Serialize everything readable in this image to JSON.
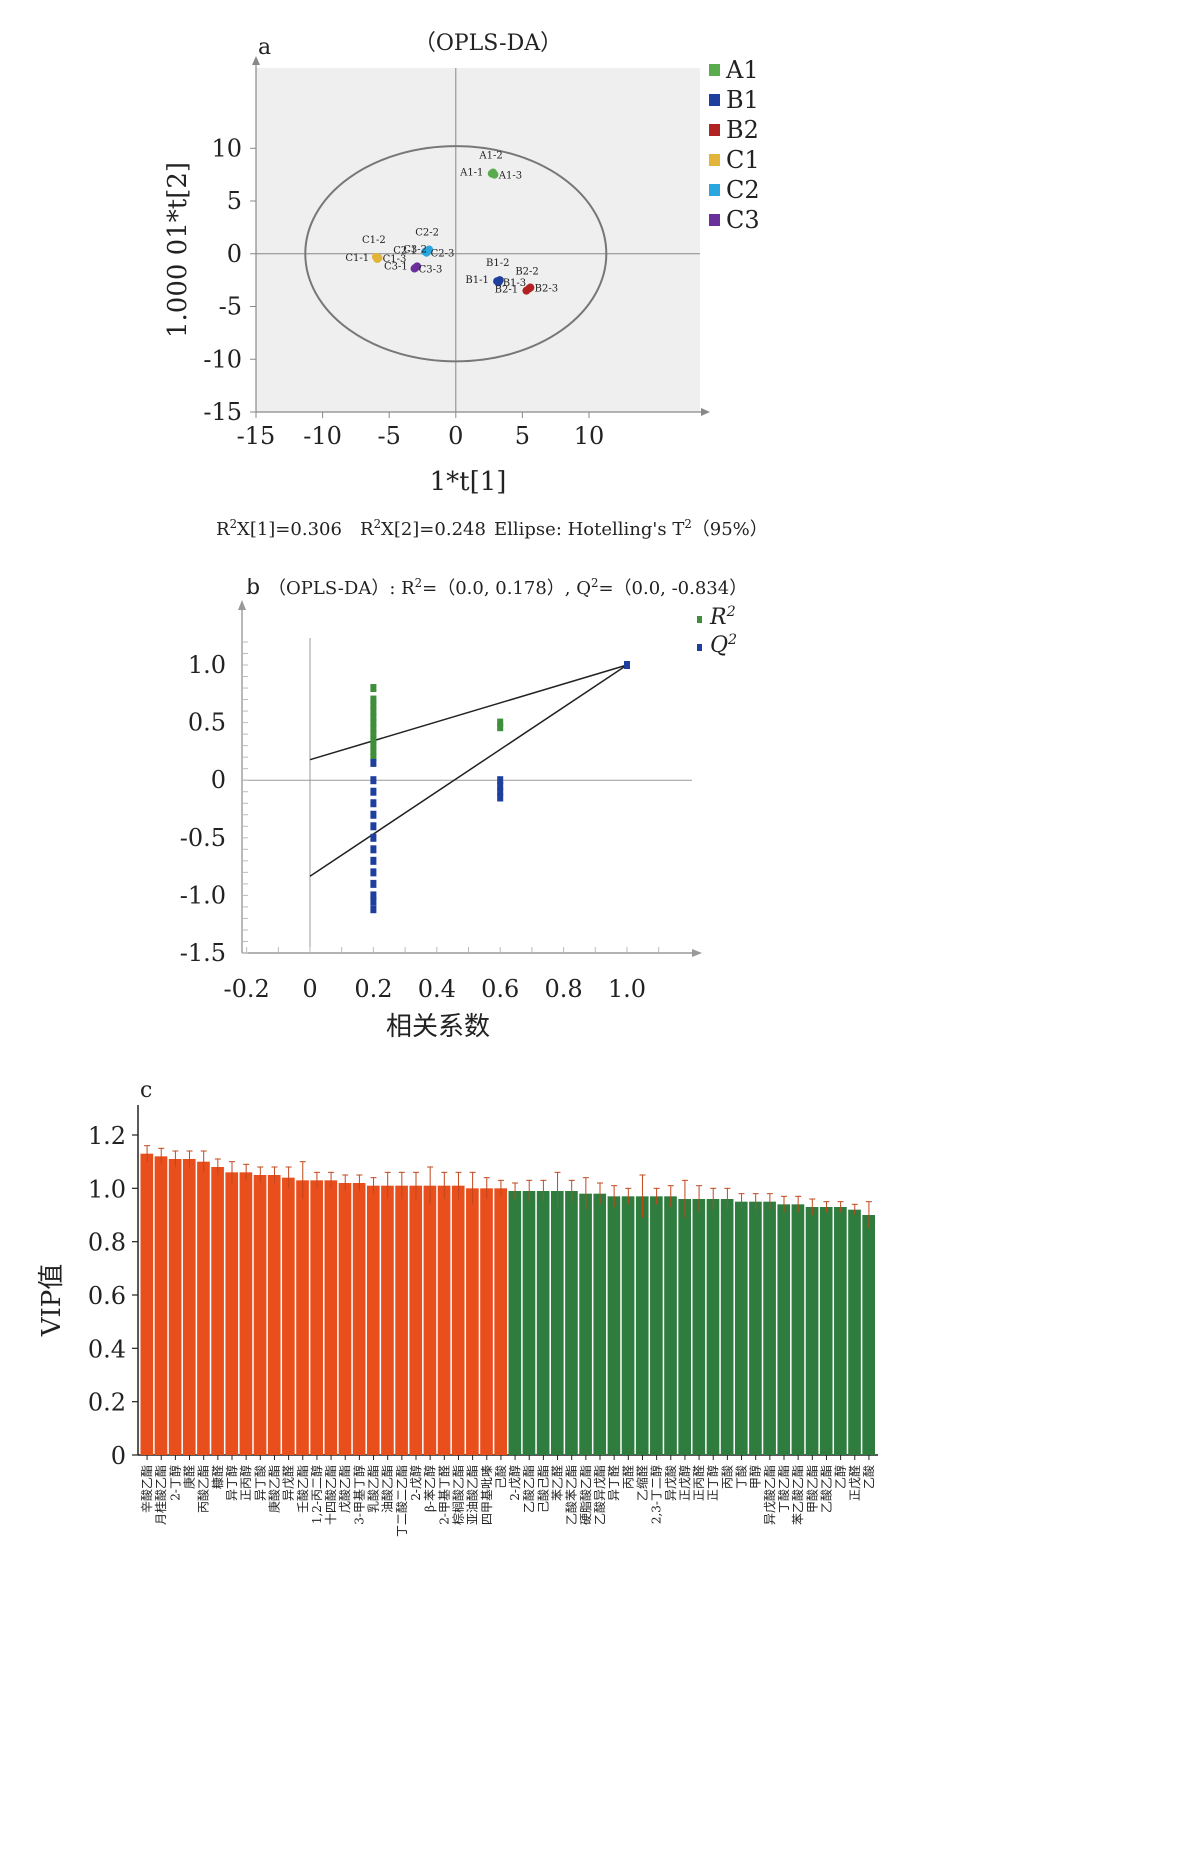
{
  "colors": {
    "A1": "#5aaa4e",
    "B1": "#1f3f9e",
    "B2": "#b22222",
    "C1": "#e3b43a",
    "C2": "#2aa6de",
    "C3": "#6a2f9a",
    "r2": "#3e8e3a",
    "q2": "#1f3f9e",
    "vip_high": "#e94f1d",
    "vip_low": "#2f7d3e",
    "plot_bg": "#efefef"
  },
  "chart_data": [
    {
      "panel": "a",
      "type": "scatter",
      "title": "（OPLS-DA）",
      "xlabel": "1*t[1]",
      "ylabel": "1.000 01*t[2]",
      "xlim": [
        -15,
        15
      ],
      "ylim": [
        -15,
        15
      ],
      "xticks": [
        "-15",
        "-10",
        "-5",
        "0",
        "5",
        "10"
      ],
      "yticks": [
        "10",
        "5",
        "0",
        "-5",
        "-10",
        "-15"
      ],
      "legend_position": "right",
      "series": [
        {
          "name": "A1",
          "points": [
            {
              "x": 2.7,
              "y": 7.6,
              "label": "A1-1"
            },
            {
              "x": 2.8,
              "y": 7.7,
              "label": "A1-2"
            },
            {
              "x": 2.9,
              "y": 7.5,
              "label": "A1-3"
            }
          ]
        },
        {
          "name": "B1",
          "points": [
            {
              "x": 3.1,
              "y": -2.6,
              "label": "B1-1"
            },
            {
              "x": 3.3,
              "y": -2.5,
              "label": "B1-2"
            },
            {
              "x": 3.2,
              "y": -2.7,
              "label": "B1-3"
            }
          ]
        },
        {
          "name": "B2",
          "points": [
            {
              "x": 5.3,
              "y": -3.5,
              "label": "B2-1"
            },
            {
              "x": 5.5,
              "y": -3.3,
              "label": "B2-2"
            },
            {
              "x": 5.6,
              "y": -3.2,
              "label": "B2-3"
            }
          ]
        },
        {
          "name": "C1",
          "points": [
            {
              "x": -5.9,
              "y": -0.5,
              "label": "C1-1"
            },
            {
              "x": -6.0,
              "y": -0.3,
              "label": "C1-2"
            },
            {
              "x": -5.8,
              "y": -0.4,
              "label": "C1-3"
            }
          ]
        },
        {
          "name": "C2",
          "points": [
            {
              "x": -2.3,
              "y": 0.2,
              "label": "C2-1"
            },
            {
              "x": -2.0,
              "y": 0.4,
              "label": "C2-2"
            },
            {
              "x": -2.2,
              "y": 0.1,
              "label": "C2-3"
            }
          ]
        },
        {
          "name": "C3",
          "points": [
            {
              "x": -3.0,
              "y": -1.3,
              "label": "C3-1"
            },
            {
              "x": -2.9,
              "y": -1.2,
              "label": "C3-2"
            },
            {
              "x": -3.1,
              "y": -1.4,
              "label": "C3-3"
            }
          ]
        }
      ],
      "ellipse": {
        "cx": 0,
        "cy": 0,
        "rx": 11.3,
        "ry": 10.2
      },
      "footer": {
        "r2x1": "R²X[1]=0.306",
        "r2x2": "R²X[2]=0.248",
        "ellipse_note": "Ellipse: Hotelling's T²（95%）"
      }
    },
    {
      "panel": "b",
      "type": "scatter",
      "title": "（OPLS-DA）: R²=（0.0, 0.178）, Q²=（0.0, -0.834）",
      "xlabel": "相关系数",
      "ylabel": "",
      "xlim": [
        -0.2,
        1.2
      ],
      "ylim": [
        -1.5,
        1.5
      ],
      "xticks": [
        "-0.2",
        "0",
        "0.2",
        "0.4",
        "0.6",
        "0.8",
        "1.0"
      ],
      "yticks": [
        "1.0",
        "0.5",
        "0",
        "-0.5",
        "-1.0",
        "-1.5"
      ],
      "legend": [
        "R²",
        "Q²"
      ],
      "legend_position": "top-right",
      "series": [
        {
          "name": "R²",
          "points": [
            [
              0.2,
              0.8
            ],
            [
              0.2,
              0.7
            ],
            [
              0.2,
              0.65
            ],
            [
              0.2,
              0.6
            ],
            [
              0.2,
              0.55
            ],
            [
              0.2,
              0.5
            ],
            [
              0.2,
              0.45
            ],
            [
              0.2,
              0.4
            ],
            [
              0.2,
              0.35
            ],
            [
              0.2,
              0.3
            ],
            [
              0.2,
              0.25
            ],
            [
              0.2,
              0.2
            ],
            [
              0.6,
              0.5
            ],
            [
              0.6,
              0.46
            ],
            [
              1.0,
              1.0
            ]
          ]
        },
        {
          "name": "Q²",
          "points": [
            [
              0.2,
              0.15
            ],
            [
              0.2,
              0.0
            ],
            [
              0.2,
              -0.1
            ],
            [
              0.2,
              -0.2
            ],
            [
              0.2,
              -0.3
            ],
            [
              0.2,
              -0.4
            ],
            [
              0.2,
              -0.5
            ],
            [
              0.2,
              -0.6
            ],
            [
              0.2,
              -0.7
            ],
            [
              0.2,
              -0.8
            ],
            [
              0.2,
              -0.9
            ],
            [
              0.2,
              -1.0
            ],
            [
              0.2,
              -1.05
            ],
            [
              0.2,
              -1.12
            ],
            [
              0.6,
              0.0
            ],
            [
              0.6,
              -0.05
            ],
            [
              0.6,
              -0.1
            ],
            [
              0.6,
              -0.15
            ],
            [
              1.0,
              1.0
            ]
          ]
        }
      ],
      "regression_lines": [
        {
          "name": "R²",
          "intercept": 0.178,
          "end": [
            1.0,
            1.0
          ]
        },
        {
          "name": "Q²",
          "intercept": -0.834,
          "end": [
            1.0,
            1.0
          ]
        }
      ]
    },
    {
      "panel": "c",
      "type": "bar",
      "ylabel": "VIP值",
      "ylim": [
        0,
        1.3
      ],
      "yticks": [
        "1.2",
        "1.0",
        "0.8",
        "0.6",
        "0.4",
        "0.2",
        "0"
      ],
      "categories": [
        "辛酸乙酯",
        "月桂酸乙酯",
        "2-丁醇",
        "庚醛",
        "丙酸乙酯",
        "糠醛",
        "异丁醇",
        "正丙醇",
        "异丁酸",
        "庚酸乙酯",
        "异戊醛",
        "壬酸乙酯",
        "1,2-丙二醇",
        "十四酸乙酯",
        "戊酸乙酯",
        "3-甲基丁醇",
        "乳酸乙酯",
        "油酸乙酯",
        "丁二酸二乙酯",
        "2-戊醇",
        "β-苯乙醇",
        "2-甲基丁醛",
        "棕榈酸乙酯",
        "亚油酸乙酯",
        "四甲基吡嗪",
        "己酸",
        "2-戊醇",
        "乙酸乙酯",
        "己酸己酯",
        "苯乙醛",
        "乙酸苯乙酯",
        "硬脂酸乙酯",
        "乙酸异戊酯",
        "异丁醛",
        "丙醛",
        "乙缩醛",
        "2,3-丁二醇",
        "异戊酸",
        "正戊醇",
        "正丙醛",
        "正丁醇",
        "丙酸",
        "丁酸",
        "甲醇",
        "异戊酸乙酯",
        "丁酸乙酯",
        "苯乙酸乙酯",
        "甲酸乙酯",
        "乙酸乙酯",
        "乙醇",
        "正戊醛",
        "乙酸"
      ],
      "values": [
        1.13,
        1.12,
        1.11,
        1.11,
        1.1,
        1.08,
        1.06,
        1.06,
        1.05,
        1.05,
        1.04,
        1.03,
        1.03,
        1.03,
        1.02,
        1.02,
        1.01,
        1.01,
        1.01,
        1.01,
        1.01,
        1.01,
        1.01,
        1.0,
        1.0,
        1.0,
        0.99,
        0.99,
        0.99,
        0.99,
        0.99,
        0.98,
        0.98,
        0.97,
        0.97,
        0.97,
        0.97,
        0.97,
        0.96,
        0.96,
        0.96,
        0.96,
        0.95,
        0.95,
        0.95,
        0.94,
        0.94,
        0.93,
        0.93,
        0.93,
        0.92,
        0.9
      ],
      "errors": [
        0.03,
        0.03,
        0.03,
        0.03,
        0.04,
        0.03,
        0.04,
        0.03,
        0.03,
        0.03,
        0.04,
        0.07,
        0.03,
        0.03,
        0.03,
        0.03,
        0.03,
        0.05,
        0.05,
        0.05,
        0.07,
        0.05,
        0.05,
        0.06,
        0.04,
        0.03,
        0.03,
        0.04,
        0.04,
        0.07,
        0.04,
        0.06,
        0.04,
        0.04,
        0.03,
        0.08,
        0.03,
        0.04,
        0.07,
        0.05,
        0.04,
        0.04,
        0.03,
        0.03,
        0.03,
        0.03,
        0.03,
        0.03,
        0.02,
        0.02,
        0.02,
        0.05
      ],
      "threshold": 1.0
    }
  ],
  "panels": {
    "a": {
      "letter": "a"
    },
    "b": {
      "letter": "b"
    },
    "c": {
      "letter": "c"
    }
  }
}
